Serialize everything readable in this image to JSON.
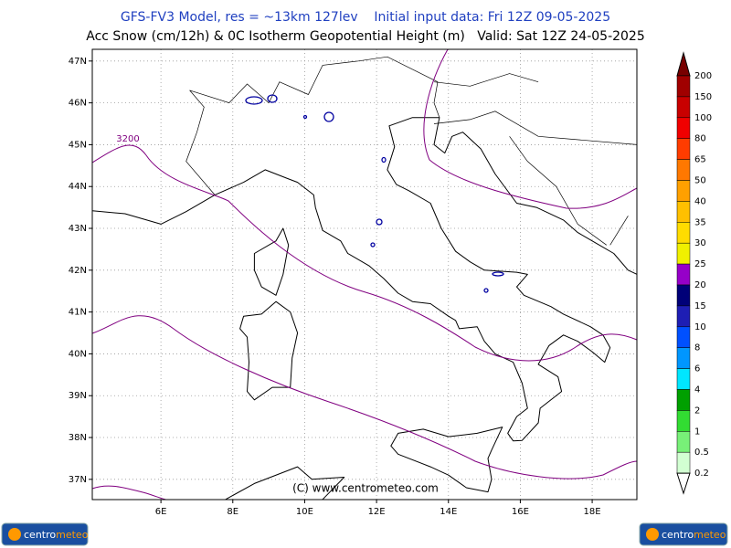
{
  "header": {
    "line1": "GFS-FV3 Model, res = ~13km 127lev    Initial input data: Fri 12Z 09-05-2025",
    "line2": "Acc Snow (cm/12h) & 0C Isotherm Geopotential Height (m)   Valid: Sat 12Z 24-05-2025"
  },
  "map": {
    "lat_ticks": [
      {
        "value": 47,
        "label": "47N"
      },
      {
        "value": 46,
        "label": "46N"
      },
      {
        "value": 45,
        "label": "45N"
      },
      {
        "value": 44,
        "label": "44N"
      },
      {
        "value": 43,
        "label": "43N"
      },
      {
        "value": 42,
        "label": "42N"
      },
      {
        "value": 41,
        "label": "41N"
      },
      {
        "value": 40,
        "label": "40N"
      },
      {
        "value": 39,
        "label": "39N"
      },
      {
        "value": 38,
        "label": "38N"
      },
      {
        "value": 37,
        "label": "37N"
      }
    ],
    "lon_ticks": [
      {
        "value": 6,
        "label": "6E"
      },
      {
        "value": 8,
        "label": "8E"
      },
      {
        "value": 10,
        "label": "10E"
      },
      {
        "value": 12,
        "label": "12E"
      },
      {
        "value": 14,
        "label": "14E"
      },
      {
        "value": 16,
        "label": "16E"
      },
      {
        "value": 18,
        "label": "18E"
      }
    ],
    "contour_label": 3200,
    "copyright": "(C) www.centrometeo.com"
  },
  "colorbar": {
    "levels": [
      200,
      150,
      100,
      80,
      65,
      50,
      40,
      35,
      30,
      25,
      20,
      15,
      10,
      8,
      6,
      4,
      2,
      1,
      0.5,
      0.2
    ],
    "colors": [
      "#a00000",
      "#c80000",
      "#f00000",
      "#ff3c00",
      "#ff7800",
      "#ffa000",
      "#ffc000",
      "#ffdc00",
      "#f0f000",
      "#9600c8",
      "#000078",
      "#1e1eb4",
      "#0050ff",
      "#0096ff",
      "#00e6ff",
      "#00a000",
      "#32dc32",
      "#78f078",
      "#d2ffd2"
    ],
    "top_color": "#780000"
  },
  "logos": [
    {
      "part1": "centro",
      "part2": "meteo"
    },
    {
      "part1": "centro",
      "part2": "meteo"
    }
  ]
}
